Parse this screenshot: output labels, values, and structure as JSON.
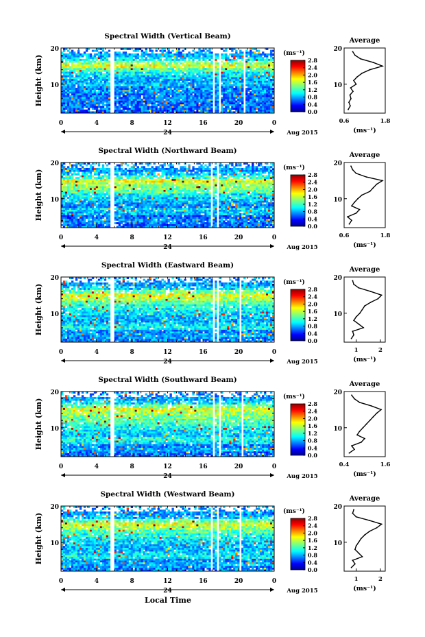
{
  "figure": {
    "xlabel_bottom": "Local Time",
    "date_label": "Aug 2015",
    "day_marker": "24",
    "ylabel": "Height (km)",
    "colorbar_unit": "(ms⁻¹)",
    "avg_title": "Average",
    "avg_unit": "(ms⁻¹)"
  },
  "chart_data": [
    {
      "type": "heatmap",
      "title": "Spectral Width (Vertical Beam)",
      "x_ticks": [
        "0",
        "4",
        "8",
        "12",
        "16",
        "20",
        "0"
      ],
      "y_ticks": [
        "10",
        "20"
      ],
      "xlim": [
        0,
        24
      ],
      "ylim": [
        2,
        20
      ],
      "colorbar_ticks": [
        "0.0",
        "0.4",
        "0.8",
        "1.2",
        "1.6",
        "2.0",
        "2.4",
        "2.8"
      ],
      "colorbar_range": [
        0,
        2.8
      ],
      "data_gaps_hours": [
        [
          5.6,
          5.9
        ],
        [
          17.1,
          17.3
        ],
        [
          17.7,
          17.9
        ],
        [
          20.6,
          20.8
        ]
      ],
      "profile": {
        "xlim": [
          0.6,
          1.8
        ],
        "x_ticks": [
          "0.6",
          "1.8"
        ],
        "heights": [
          3,
          4,
          5,
          6,
          7,
          8,
          9,
          10,
          11,
          12,
          13,
          14,
          15,
          16,
          17,
          18,
          19
        ],
        "values": [
          0.72,
          0.78,
          0.74,
          0.8,
          0.77,
          0.86,
          0.79,
          0.95,
          0.88,
          0.98,
          1.12,
          1.35,
          1.72,
          1.45,
          1.08,
          0.92,
          0.85
        ]
      }
    },
    {
      "type": "heatmap",
      "title": "Spectral Width (Northward Beam)",
      "x_ticks": [
        "0",
        "4",
        "8",
        "12",
        "16",
        "20",
        "0"
      ],
      "y_ticks": [
        "10",
        "20"
      ],
      "xlim": [
        0,
        24
      ],
      "ylim": [
        2,
        20
      ],
      "colorbar_ticks": [
        "0.0",
        "0.4",
        "0.8",
        "1.2",
        "1.6",
        "2.0",
        "2.4",
        "2.8"
      ],
      "colorbar_range": [
        0,
        2.8
      ],
      "data_gaps_hours": [
        [
          5.6,
          5.9
        ],
        [
          16.9,
          17.1
        ],
        [
          17.5,
          17.7
        ],
        [
          20.2,
          20.4
        ]
      ],
      "profile": {
        "xlim": [
          0.6,
          1.8
        ],
        "x_ticks": [
          "0.6",
          "1.8"
        ],
        "heights": [
          3,
          4,
          5,
          6,
          7,
          8,
          9,
          10,
          11,
          12,
          13,
          14,
          15,
          16,
          17,
          18,
          19
        ],
        "values": [
          0.75,
          0.82,
          0.7,
          0.95,
          1.05,
          0.82,
          0.9,
          1.0,
          1.12,
          1.35,
          1.45,
          1.55,
          1.72,
          1.25,
          0.95,
          0.85,
          0.8
        ]
      }
    },
    {
      "type": "heatmap",
      "title": "Spectral Width (Eastward Beam)",
      "x_ticks": [
        "0",
        "4",
        "8",
        "12",
        "16",
        "20",
        "0"
      ],
      "y_ticks": [
        "10",
        "20"
      ],
      "xlim": [
        0,
        24
      ],
      "ylim": [
        2,
        20
      ],
      "colorbar_ticks": [
        "0.0",
        "0.4",
        "0.8",
        "1.2",
        "1.6",
        "2.0",
        "2.4",
        "2.8"
      ],
      "colorbar_range": [
        0,
        2.8
      ],
      "data_gaps_hours": [
        [
          5.6,
          5.9
        ],
        [
          17.1,
          17.3
        ],
        [
          17.6,
          17.8
        ],
        [
          20.1,
          20.3
        ]
      ],
      "profile": {
        "xlim": [
          0.5,
          2.2
        ],
        "x_ticks": [
          "1",
          "2"
        ],
        "heights": [
          3,
          4,
          5,
          6,
          7,
          8,
          9,
          10,
          11,
          12,
          13,
          14,
          15,
          16,
          17,
          18,
          19
        ],
        "values": [
          0.8,
          0.9,
          0.85,
          1.3,
          1.1,
          0.9,
          1.0,
          1.15,
          1.25,
          1.35,
          1.6,
          1.9,
          2.05,
          1.6,
          1.1,
          0.9,
          0.85
        ]
      }
    },
    {
      "type": "heatmap",
      "title": "Spectral Width (Southward Beam)",
      "x_ticks": [
        "0",
        "4",
        "8",
        "12",
        "16",
        "20",
        "0"
      ],
      "y_ticks": [
        "10",
        "20"
      ],
      "xlim": [
        0,
        24
      ],
      "ylim": [
        2,
        20
      ],
      "colorbar_ticks": [
        "0.0",
        "0.4",
        "0.8",
        "1.2",
        "1.6",
        "2.0",
        "2.4",
        "2.8"
      ],
      "colorbar_range": [
        0,
        2.8
      ],
      "data_gaps_hours": [
        [
          5.6,
          5.9
        ],
        [
          17.1,
          17.3
        ],
        [
          17.7,
          17.9
        ],
        [
          20.3,
          20.5
        ]
      ],
      "profile": {
        "xlim": [
          0.4,
          1.6
        ],
        "x_ticks": [
          "0.4",
          "1.6"
        ],
        "heights": [
          3,
          4,
          5,
          6,
          7,
          8,
          9,
          10,
          11,
          12,
          13,
          14,
          15,
          16,
          17,
          18,
          19
        ],
        "values": [
          0.55,
          0.7,
          0.62,
          0.9,
          1.0,
          0.78,
          0.85,
          0.95,
          1.05,
          1.15,
          1.25,
          1.35,
          1.48,
          1.2,
          0.85,
          0.7,
          0.62
        ]
      }
    },
    {
      "type": "heatmap",
      "title": "Spectral Width (Westward Beam)",
      "x_ticks": [
        "0",
        "4",
        "8",
        "12",
        "16",
        "20",
        "0"
      ],
      "y_ticks": [
        "10",
        "20"
      ],
      "xlim": [
        0,
        24
      ],
      "ylim": [
        2,
        20
      ],
      "colorbar_ticks": [
        "0.0",
        "0.4",
        "0.8",
        "1.2",
        "1.6",
        "2.0",
        "2.4",
        "2.8"
      ],
      "colorbar_range": [
        0,
        2.8
      ],
      "data_gaps_hours": [
        [
          5.6,
          5.9
        ],
        [
          16.9,
          17.1
        ],
        [
          17.5,
          17.7
        ],
        [
          20.0,
          20.2
        ]
      ],
      "profile": {
        "xlim": [
          0.5,
          2.2
        ],
        "x_ticks": [
          "1",
          "2"
        ],
        "heights": [
          3,
          4,
          5,
          6,
          7,
          8,
          9,
          10,
          11,
          12,
          13,
          14,
          15,
          16,
          17,
          18,
          19
        ],
        "values": [
          0.8,
          0.95,
          0.85,
          1.25,
          1.1,
          0.95,
          1.0,
          1.1,
          1.2,
          1.35,
          1.55,
          1.85,
          2.05,
          1.55,
          1.0,
          0.85,
          0.9
        ]
      }
    }
  ]
}
